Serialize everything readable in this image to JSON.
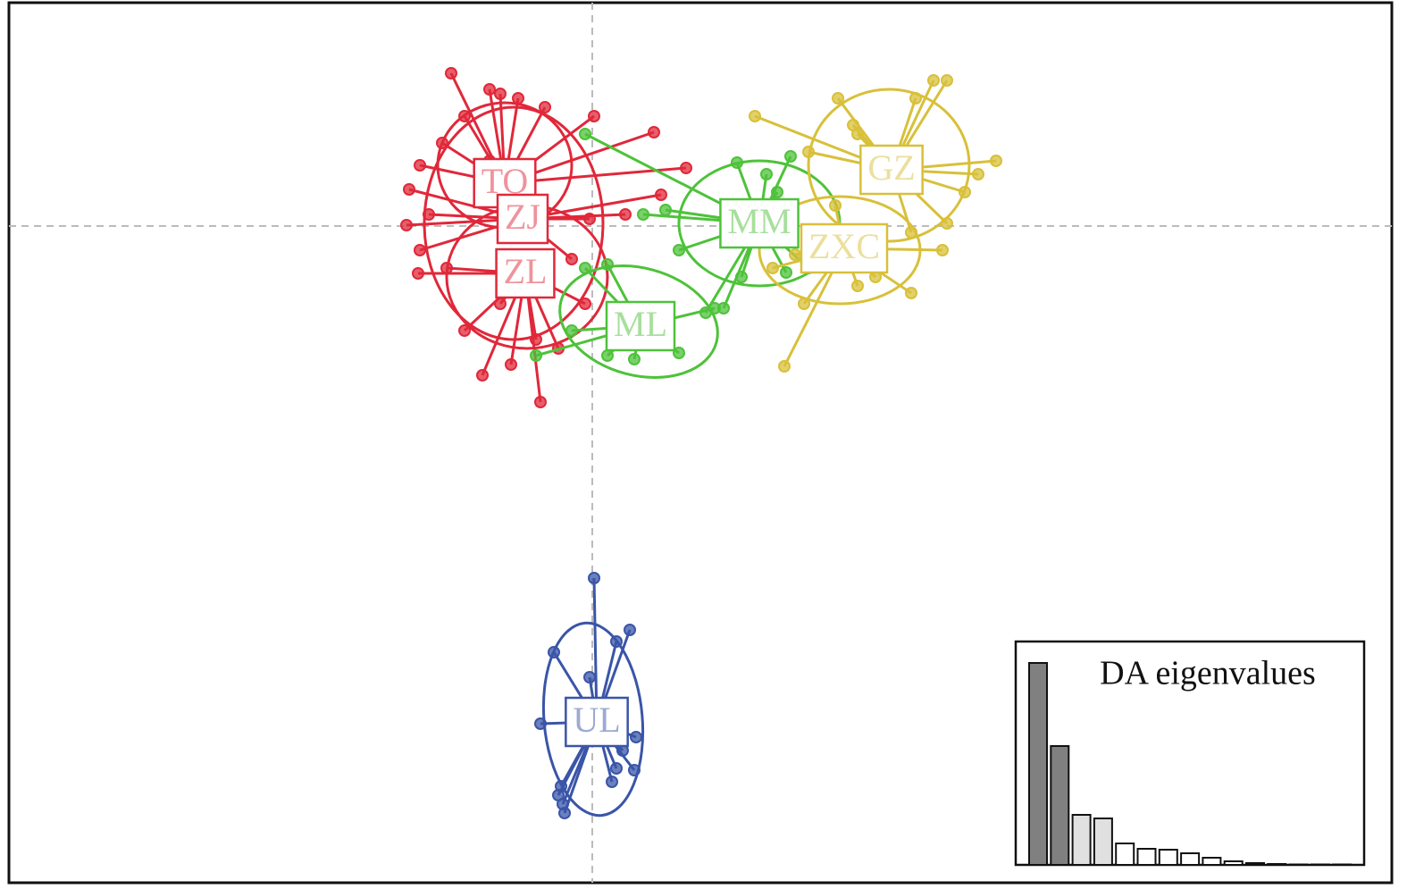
{
  "chart_data": [
    {
      "type": "scatter",
      "xlim": [
        -6.53,
        8.95
      ],
      "ylim": [
        -7.35,
        2.5
      ],
      "reference_lines": {
        "x": 0,
        "y": 0
      },
      "groups": [
        {
          "name": "TO",
          "color": "#e0283a",
          "centroid": {
            "x": -0.98,
            "y": 0.48
          },
          "points": {
            "x": [
              -1.58,
              -1.43,
              -1.15,
              -1.03,
              -0.83,
              -1.93,
              0.69,
              1.05,
              -1.15,
              -1.68,
              -0.53,
              0.02
            ],
            "y": [
              1.71,
              1.23,
              1.53,
              1.48,
              1.43,
              0.68,
              1.05,
              0.65,
              0.73,
              0.93,
              1.33,
              1.23
            ]
          },
          "ellipse": {
            "cx": -0.98,
            "cy": 0.68,
            "rx": 0.75,
            "ry": 0.7,
            "angle": 0
          }
        },
        {
          "name": "ZJ",
          "color": "#e0283a",
          "centroid": {
            "x": -0.78,
            "y": 0.08
          },
          "points": {
            "x": [
              -2.05,
              0.77,
              -2.08,
              -1.93,
              -1.83,
              -0.03,
              0.37,
              -0.23
            ],
            "y": [
              0.41,
              0.35,
              0.01,
              -0.27,
              0.13,
              0.08,
              0.13,
              -0.37
            ]
          },
          "ellipse": {
            "cx": -0.88,
            "cy": 0.03,
            "rx": 1.0,
            "ry": 1.3,
            "angle": 0
          }
        },
        {
          "name": "ZL",
          "color": "#e0283a",
          "centroid": {
            "x": -0.75,
            "y": -0.53
          },
          "points": {
            "x": [
              -1.95,
              -1.63,
              -1.23,
              -0.91,
              -0.58,
              -0.38,
              -0.08,
              -0.63,
              -1.43,
              -1.03
            ],
            "y": [
              -0.53,
              -0.47,
              -1.67,
              -1.55,
              -1.97,
              -1.37,
              -0.87,
              -1.27,
              -1.17,
              -0.87
            ]
          },
          "ellipse": {
            "cx": -0.73,
            "cy": -0.57,
            "rx": 0.9,
            "ry": 0.8,
            "angle": 0
          }
        },
        {
          "name": "MM",
          "color": "#4ec23a",
          "centroid": {
            "x": 1.87,
            "y": 0.03
          },
          "points": {
            "x": [
              1.62,
              2.22,
              1.95,
              0.82,
              0.97,
              1.67,
              1.27,
              1.47,
              2.17,
              2.42,
              0.57,
              -0.08,
              2.07
            ],
            "y": [
              0.71,
              0.78,
              0.58,
              0.18,
              -0.27,
              -0.57,
              -0.97,
              -0.92,
              -0.52,
              -0.47,
              0.13,
              1.03,
              0.38
            ]
          },
          "ellipse": {
            "cx": 1.87,
            "cy": 0.03,
            "rx": 0.9,
            "ry": 0.7,
            "angle": 0
          }
        },
        {
          "name": "ML",
          "color": "#4ec23a",
          "centroid": {
            "x": 0.54,
            "y": -1.12
          },
          "points": {
            "x": [
              -0.63,
              -0.23,
              0.17,
              0.47,
              0.97,
              -0.08,
              0.17,
              0.37,
              1.37
            ],
            "y": [
              -1.45,
              -1.17,
              -1.45,
              -1.49,
              -1.42,
              -0.47,
              -0.43,
              -0.97,
              -0.92
            ]
          },
          "ellipse": {
            "cx": 0.52,
            "cy": -1.07,
            "rx": 0.9,
            "ry": 0.6,
            "angle": -15
          }
        },
        {
          "name": "GZ",
          "color": "#d8c03a",
          "centroid": {
            "x": 3.35,
            "y": 0.63
          },
          "points": {
            "x": [
              2.75,
              3.62,
              3.82,
              3.97,
              1.82,
              4.52,
              4.32,
              2.97,
              2.42,
              3.97,
              3.57,
              2.92,
              4.17
            ],
            "y": [
              1.43,
              1.43,
              1.63,
              1.63,
              1.23,
              0.73,
              0.58,
              1.03,
              0.83,
              0.03,
              -0.07,
              1.13,
              0.38
            ]
          },
          "ellipse": {
            "cx": 3.32,
            "cy": 0.68,
            "rx": 0.9,
            "ry": 0.85,
            "angle": 0
          }
        },
        {
          "name": "ZXC",
          "color": "#d8c03a",
          "centroid": {
            "x": 2.82,
            "y": -0.25
          },
          "points": {
            "x": [
              2.15,
              2.02,
              3.57,
              3.92,
              3.17,
              2.37,
              2.97,
              2.72,
              2.27
            ],
            "y": [
              -1.57,
              -0.47,
              -0.75,
              -0.27,
              -0.57,
              -0.87,
              -0.67,
              0.23,
              -0.32
            ]
          },
          "ellipse": {
            "cx": 2.77,
            "cy": -0.27,
            "rx": 0.9,
            "ry": 0.6,
            "angle": 0
          }
        },
        {
          "name": "UL",
          "color": "#3a55a8",
          "centroid": {
            "x": 0.05,
            "y": -5.55
          },
          "points": {
            "x": [
              0.02,
              0.42,
              0.27,
              -0.43,
              -0.03,
              -0.58,
              0.49,
              0.47,
              0.27,
              0.22,
              -0.35,
              -0.38,
              -0.33,
              -0.31,
              0.34
            ],
            "y": [
              -3.94,
              -4.52,
              -4.65,
              -4.77,
              -5.05,
              -5.57,
              -5.72,
              -6.09,
              -6.07,
              -6.22,
              -6.27,
              -6.37,
              -6.47,
              -6.57,
              -5.87
            ]
          },
          "ellipse": {
            "cx": 0.01,
            "cy": -5.52,
            "rx": 0.55,
            "ry": 1.08,
            "angle": 5
          }
        }
      ]
    },
    {
      "type": "bar",
      "title": "DA eigenvalues",
      "ylim": [
        0,
        250
      ],
      "values": [
        226,
        133,
        56,
        52,
        24,
        18,
        17,
        13,
        8,
        4,
        2,
        1,
        0.5,
        0.5,
        0.5
      ],
      "colors": [
        "#808080",
        "#808080",
        "#e0e0e0",
        "#e0e0e0",
        "#ffffff",
        "#ffffff",
        "#ffffff",
        "#ffffff",
        "#ffffff",
        "#ffffff",
        "#ffffff",
        "#ffffff",
        "#ffffff",
        "#ffffff",
        "#ffffff"
      ]
    }
  ]
}
